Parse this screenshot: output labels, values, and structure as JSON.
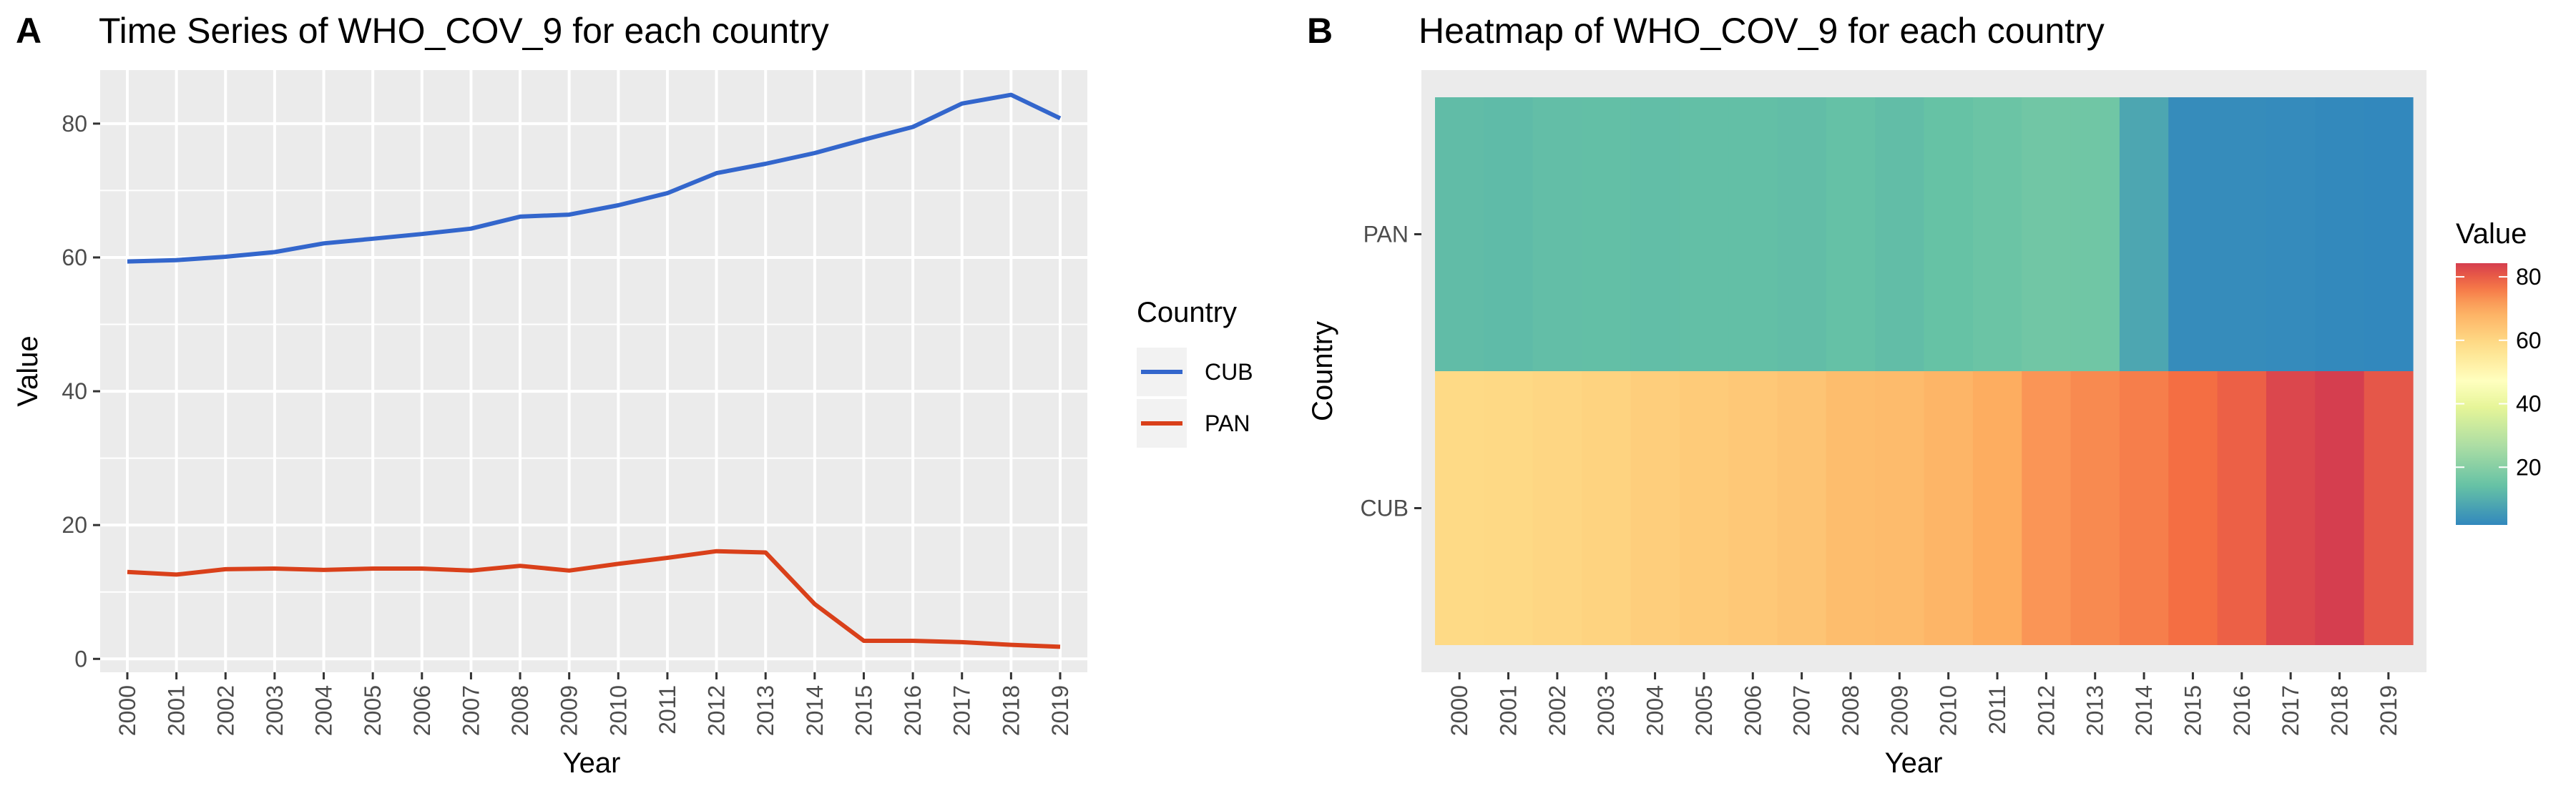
{
  "panels": {
    "a_letter": "A",
    "b_letter": "B"
  },
  "colors": {
    "panel_bg": "#ebebeb",
    "grid": "#ffffff",
    "cub": "#3366cc",
    "pan": "#d9401a"
  },
  "chart_data": [
    {
      "type": "line",
      "title": "Time Series of WHO_COV_9 for each country",
      "xlabel": "Year",
      "ylabel": "Value",
      "ylim": [
        -2,
        88
      ],
      "yticks": [
        0,
        20,
        40,
        60,
        80
      ],
      "legend_title": "Country",
      "legend_position": "right",
      "grid": true,
      "x": [
        "2000",
        "2001",
        "2002",
        "2003",
        "2004",
        "2005",
        "2006",
        "2007",
        "2008",
        "2009",
        "2010",
        "2011",
        "2012",
        "2013",
        "2014",
        "2015",
        "2016",
        "2017",
        "2018",
        "2019"
      ],
      "series": [
        {
          "name": "CUB",
          "color": "#3366cc",
          "values": [
            59.4,
            59.6,
            60.1,
            60.8,
            62.1,
            62.8,
            63.5,
            64.3,
            66.1,
            66.4,
            67.8,
            69.6,
            72.6,
            74.0,
            75.6,
            77.6,
            79.5,
            83.0,
            84.3,
            80.8
          ]
        },
        {
          "name": "PAN",
          "color": "#d9401a",
          "values": [
            13.0,
            12.6,
            13.4,
            13.5,
            13.3,
            13.5,
            13.5,
            13.2,
            13.9,
            13.2,
            14.2,
            15.1,
            16.1,
            15.9,
            8.2,
            2.7,
            2.7,
            2.5,
            2.1,
            1.8
          ]
        }
      ]
    },
    {
      "type": "heatmap",
      "title": "Heatmap of WHO_COV_9 for each country",
      "xlabel": "Year",
      "ylabel": "Country",
      "legend_title": "Value",
      "legend_position": "right",
      "colorbar_ticks": [
        20,
        40,
        60,
        80
      ],
      "value_range": [
        1.8,
        84.3
      ],
      "x": [
        "2000",
        "2001",
        "2002",
        "2003",
        "2004",
        "2005",
        "2006",
        "2007",
        "2008",
        "2009",
        "2010",
        "2011",
        "2012",
        "2013",
        "2014",
        "2015",
        "2016",
        "2017",
        "2018",
        "2019"
      ],
      "y": [
        "CUB",
        "PAN"
      ],
      "values": {
        "CUB": [
          59.4,
          59.6,
          60.1,
          60.8,
          62.1,
          62.8,
          63.5,
          64.3,
          66.1,
          66.4,
          67.8,
          69.6,
          72.6,
          74.0,
          75.6,
          77.6,
          79.5,
          83.0,
          84.3,
          80.8
        ],
        "PAN": [
          13.0,
          12.6,
          13.4,
          13.5,
          13.3,
          13.5,
          13.5,
          13.2,
          13.9,
          13.2,
          14.2,
          15.1,
          16.1,
          15.9,
          8.2,
          2.7,
          2.7,
          2.5,
          2.1,
          1.8
        ]
      }
    }
  ]
}
